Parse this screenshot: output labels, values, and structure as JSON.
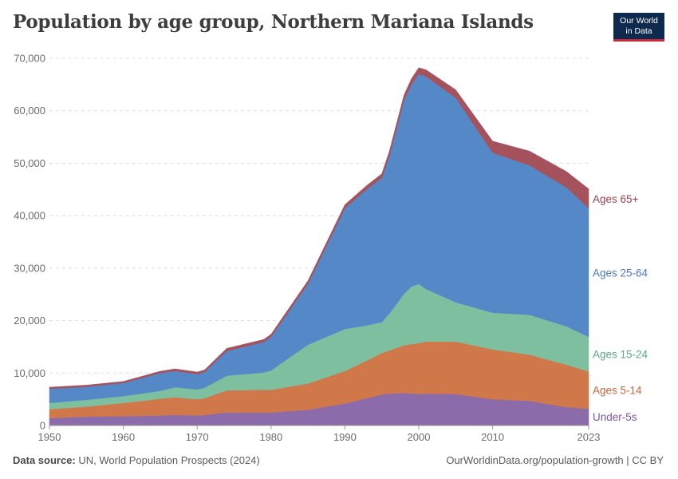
{
  "header": {
    "title": "Population by age group, Northern Mariana Islands",
    "logo_line1": "Our World",
    "logo_line2": "in Data"
  },
  "footer": {
    "source_label": "Data source:",
    "source_text": "UN, World Population Prospects (2024)",
    "url_text": "OurWorldinData.org/population-growth | CC BY"
  },
  "chart_data": {
    "type": "area",
    "stacked": true,
    "title": "Population by age group, Northern Mariana Islands",
    "xlabel": "",
    "ylabel": "",
    "xlim": [
      1950,
      2023
    ],
    "ylim": [
      0,
      70000
    ],
    "x_ticks": [
      "1950",
      "1960",
      "1970",
      "1980",
      "1990",
      "2000",
      "2010",
      "2023"
    ],
    "x_tick_values": [
      1950,
      1960,
      1970,
      1980,
      1990,
      2000,
      2010,
      2023
    ],
    "y_ticks": [
      "0",
      "10,000",
      "20,000",
      "30,000",
      "40,000",
      "50,000",
      "60,000",
      "70,000"
    ],
    "y_tick_values": [
      0,
      10000,
      20000,
      30000,
      40000,
      50000,
      60000,
      70000
    ],
    "x": [
      1950,
      1955,
      1960,
      1965,
      1967,
      1970,
      1971,
      1974,
      1979,
      1980,
      1985,
      1990,
      1993,
      1995,
      1996,
      1998,
      1999,
      2000,
      2001,
      2005,
      2010,
      2015,
      2020,
      2023
    ],
    "series": [
      {
        "name": "Under-5s",
        "color": "#8c6bab",
        "label_color": "#7a57a8",
        "values": [
          1400,
          1700,
          1800,
          1900,
          2000,
          1900,
          2000,
          2500,
          2500,
          2500,
          3000,
          4200,
          5200,
          5900,
          6100,
          6200,
          6100,
          6000,
          6100,
          6000,
          5000,
          4700,
          3500,
          3200
        ]
      },
      {
        "name": "Ages 5-14",
        "color": "#d0784a",
        "label_color": "#c4663a",
        "values": [
          1700,
          1900,
          2500,
          3200,
          3400,
          3100,
          3200,
          4200,
          4300,
          4300,
          5000,
          6200,
          7200,
          7900,
          8200,
          9100,
          9400,
          9700,
          9900,
          10000,
          9500,
          8800,
          8100,
          7100
        ]
      },
      {
        "name": "Ages 15-24",
        "color": "#7ebf9f",
        "label_color": "#5aa884",
        "values": [
          1200,
          1300,
          1300,
          1500,
          1900,
          1900,
          2000,
          2800,
          3300,
          3700,
          7400,
          8000,
          6700,
          5900,
          7000,
          9800,
          11000,
          11300,
          10000,
          7500,
          7000,
          7600,
          7300,
          6600
        ]
      },
      {
        "name": "Ages 25-64",
        "color": "#5588c7",
        "label_color": "#4a77c2",
        "values": [
          2700,
          2500,
          2500,
          3400,
          3100,
          2900,
          3000,
          4700,
          5800,
          6400,
          11600,
          23000,
          26000,
          27500,
          30000,
          36900,
          38500,
          40000,
          40500,
          39000,
          30500,
          28500,
          26500,
          24500
        ]
      },
      {
        "name": "Ages 65+",
        "color": "#a5525c",
        "label_color": "#9b3f4b",
        "values": [
          300,
          300,
          300,
          350,
          400,
          400,
          400,
          500,
          500,
          500,
          600,
          700,
          700,
          800,
          900,
          1000,
          1100,
          1200,
          1300,
          1500,
          2200,
          2700,
          3000,
          3700
        ]
      }
    ]
  }
}
